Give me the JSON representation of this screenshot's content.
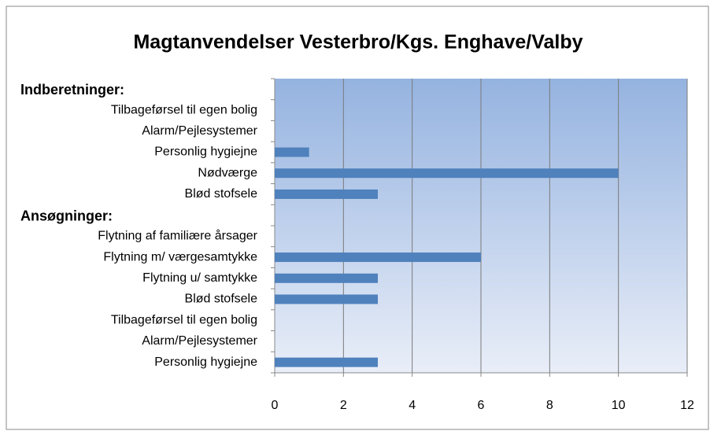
{
  "chart_data": {
    "type": "barh",
    "title": "Magtanvendelser Vesterbro/Kgs. Enghave/Valby",
    "groups": [
      {
        "name": "Indberetninger:",
        "categories": [
          "Tilbageførsel til egen bolig",
          "Alarm/Pejlesystemer",
          "Personlig hygiejne",
          "Nødværge",
          "Blød stofsele"
        ],
        "values": [
          null,
          null,
          1,
          10,
          3
        ]
      },
      {
        "name": "Ansøgninger:",
        "categories": [
          "Flytning af familiære årsager",
          "Flytning m/ værgesamtykke",
          "Flytning u/ samtykke",
          "Blød stofsele",
          "Tilbageførsel til egen bolig",
          "Alarm/Pejlesystemer",
          "Personlig hygiejne"
        ],
        "values": [
          null,
          6,
          3,
          3,
          null,
          null,
          3
        ]
      }
    ],
    "color": "#4f81bd",
    "xlim": [
      0,
      12
    ],
    "xticks": [
      0,
      2,
      4,
      6,
      8,
      10,
      12
    ],
    "grid": true
  }
}
